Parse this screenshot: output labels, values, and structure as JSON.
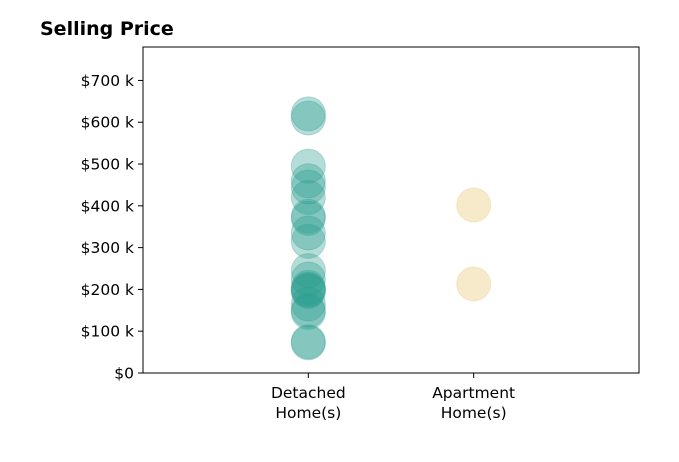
{
  "chart_data": {
    "type": "scatter",
    "title": "Selling Price",
    "xlabel": "",
    "ylabel": "",
    "categories": [
      {
        "lines": [
          "Detached",
          "Home(s)"
        ]
      },
      {
        "lines": [
          "Apartment",
          "Home(s)"
        ]
      }
    ],
    "y_ticks": [
      {
        "value": 0,
        "label": "$0"
      },
      {
        "value": 100000,
        "label": "$100 k"
      },
      {
        "value": 200000,
        "label": "$200 k"
      },
      {
        "value": 300000,
        "label": "$300 k"
      },
      {
        "value": 400000,
        "label": "$400 k"
      },
      {
        "value": 500000,
        "label": "$500 k"
      },
      {
        "value": 600000,
        "label": "$600 k"
      },
      {
        "value": 700000,
        "label": "$700 k"
      }
    ],
    "ylim": [
      0,
      780000
    ],
    "xlim": [
      0,
      3
    ],
    "grid": false,
    "legend": "none",
    "series": [
      {
        "category_index": 0,
        "color": "#2a9d8f",
        "values": [
          620000,
          610000,
          495000,
          460000,
          445000,
          420000,
          375000,
          370000,
          335000,
          315000,
          245000,
          225000,
          205000,
          200000,
          198000,
          195000,
          165000,
          150000,
          145000,
          75000,
          72000
        ]
      },
      {
        "category_index": 1,
        "color": "#e9c46a",
        "values": [
          402000,
          213000
        ]
      }
    ]
  }
}
